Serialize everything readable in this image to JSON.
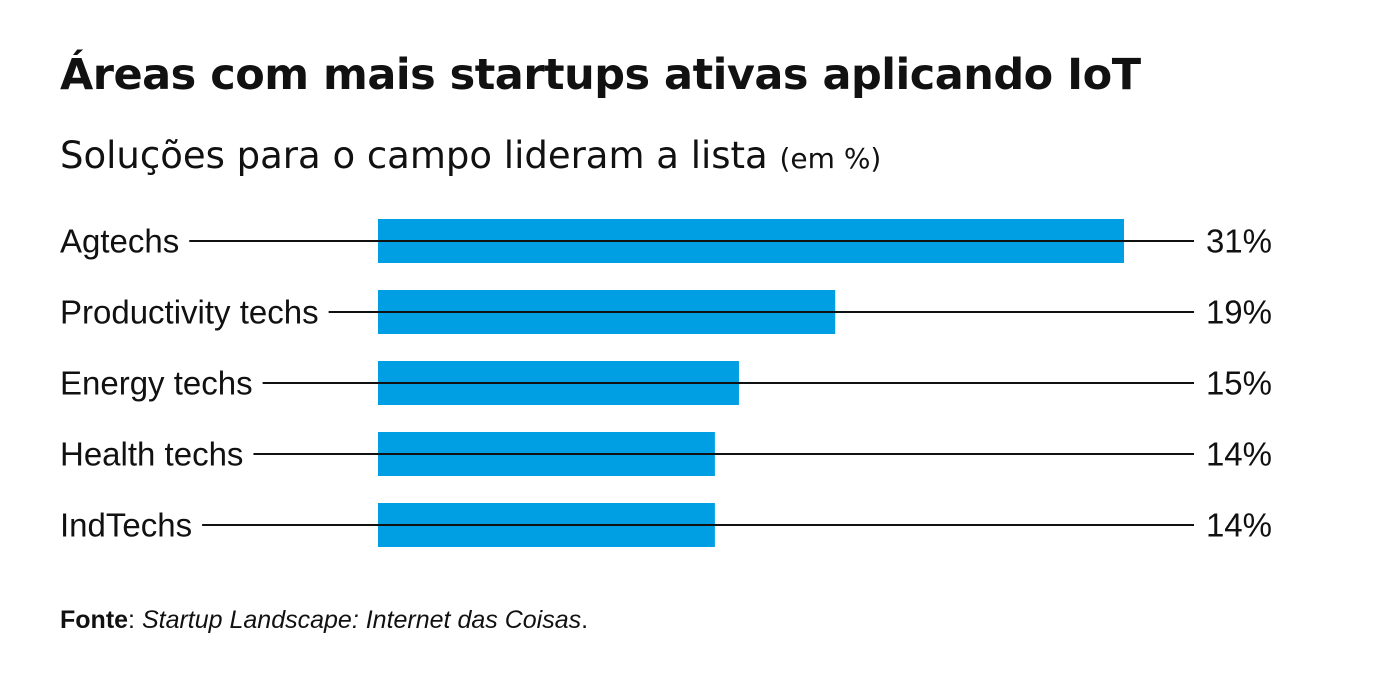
{
  "chart_data": {
    "type": "bar",
    "orientation": "horizontal",
    "title": "Áreas com mais startups ativas aplicando IoT",
    "subtitle": "Soluções para o campo lideram a lista",
    "unit_note": "(em %)",
    "categories": [
      "Agtechs",
      "Productivity techs",
      "Energy techs",
      "Health techs",
      "IndTechs"
    ],
    "values": [
      31,
      19,
      15,
      14,
      14
    ],
    "value_labels": [
      "31%",
      "19%",
      "15%",
      "14%",
      "14%"
    ],
    "xlim": [
      0,
      31
    ],
    "grid": false,
    "legend": "none",
    "bar_color": "#009fe3",
    "line_color": "#111111"
  },
  "source": {
    "label": "Fonte",
    "separator": ": ",
    "text": "Startup Landscape: Internet das Coisas",
    "end": "."
  }
}
